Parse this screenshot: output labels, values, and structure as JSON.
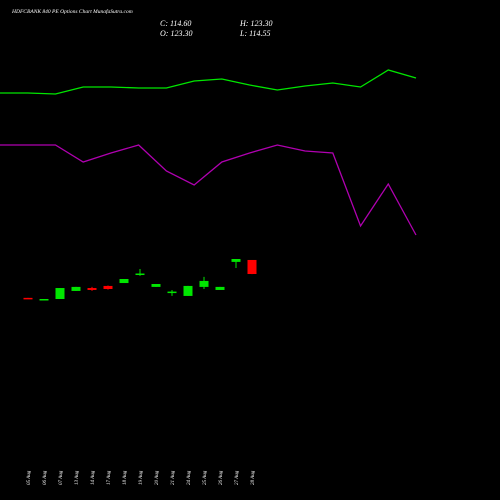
{
  "chart_data": [
    {
      "type": "candlestick",
      "title": "HDFCBANK 840 PE Options Chart MunafaSutra.com",
      "annotations": [
        "C: 114.60",
        "O: 123.30",
        "H: 123.30",
        "L: 114.55"
      ],
      "categories": [
        "05 Aug",
        "06 Aug",
        "07 Aug",
        "13 Aug",
        "14 Aug",
        "17 Aug",
        "18 Aug",
        "19 Aug",
        "20 Aug",
        "21 Aug",
        "24 Aug",
        "25 Aug",
        "26 Aug",
        "27 Aug",
        "28 Aug"
      ],
      "open": [
        99.8,
        99.1,
        99.1,
        104.1,
        105.9,
        107.2,
        109.0,
        114.6,
        106.6,
        103.5,
        101.0,
        106.6,
        104.7,
        122.1,
        123.3
      ],
      "high": [
        99.8,
        99.1,
        105.9,
        106.6,
        106.6,
        107.5,
        111.5,
        117.7,
        108.4,
        104.7,
        107.2,
        112.8,
        106.6,
        123.9,
        123.3
      ],
      "low": [
        99.7,
        99.1,
        99.1,
        104.1,
        104.1,
        104.9,
        109.0,
        113.4,
        106.6,
        101.0,
        101.0,
        105.3,
        104.7,
        118.3,
        114.55
      ],
      "close": [
        99.7,
        99.1,
        105.9,
        106.6,
        104.7,
        105.3,
        111.5,
        114.9,
        108.4,
        103.7,
        107.2,
        110.3,
        106.6,
        123.9,
        114.6
      ],
      "up_color": "#00e600",
      "down_color": "#ff0000",
      "doji_color": "#dddddd"
    },
    {
      "type": "line",
      "series": [
        {
          "color": "#00e600",
          "values": [
            107,
            107,
            106,
            113,
            113,
            112,
            112,
            119,
            121,
            115,
            110,
            114,
            117,
            113,
            130,
            122
          ]
        },
        {
          "color": "#b000b0",
          "values": [
            155,
            155,
            155,
            138,
            147,
            155,
            129,
            115,
            138,
            147,
            155,
            149,
            147,
            74,
            116,
            65
          ]
        }
      ]
    }
  ]
}
